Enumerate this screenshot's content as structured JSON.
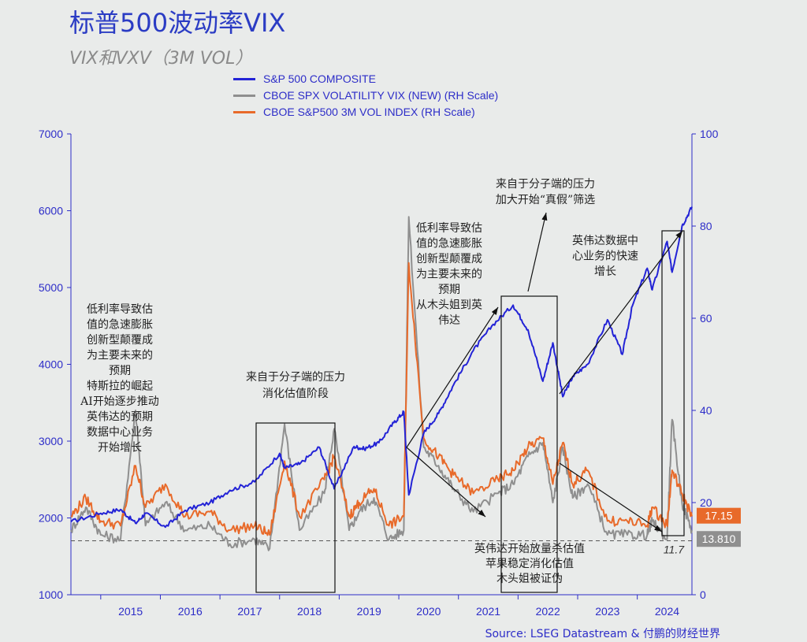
{
  "title": "标普500波动率VIX",
  "subtitle": "VIX和VXV（3M VOL）",
  "source": "Source: LSEG Datastream & 付鹏的财经世界",
  "chart_data": {
    "type": "line",
    "x_range": [
      "2014-07",
      "2024-12"
    ],
    "x_ticks": [
      "2015",
      "2016",
      "2017",
      "2018",
      "2019",
      "2020",
      "2021",
      "2022",
      "2023",
      "2024"
    ],
    "y_left": {
      "range": [
        1000,
        7000
      ],
      "ticks": [
        "1000",
        "2000",
        "3000",
        "4000",
        "5000",
        "6000",
        "7000"
      ]
    },
    "y_right": {
      "range": [
        0,
        100
      ],
      "ticks": [
        "0",
        "20",
        "40",
        "60",
        "80",
        "100"
      ]
    },
    "grid": false,
    "legend_position": "top",
    "series": [
      {
        "name": "S&P 500 COMPOSITE",
        "axis": "left",
        "color": "#2323d6",
        "x": [
          "2014-07",
          "2015-01",
          "2015-05",
          "2015-08",
          "2015-10",
          "2016-02",
          "2016-06",
          "2016-11",
          "2017-03",
          "2017-08",
          "2018-01",
          "2018-02",
          "2018-05",
          "2018-09",
          "2018-12",
          "2019-04",
          "2019-06",
          "2019-09",
          "2019-12",
          "2020-02",
          "2020-03",
          "2020-06",
          "2020-09",
          "2020-12",
          "2021-04",
          "2021-08",
          "2021-12",
          "2022-03",
          "2022-06",
          "2022-08",
          "2022-10",
          "2022-12",
          "2023-03",
          "2023-07",
          "2023-10",
          "2023-12",
          "2024-03",
          "2024-04",
          "2024-07",
          "2024-08",
          "2024-10",
          "2024-12"
        ],
        "values": [
          1950,
          2060,
          2110,
          1930,
          2060,
          1880,
          2100,
          2200,
          2360,
          2470,
          2840,
          2650,
          2700,
          2920,
          2380,
          2930,
          2900,
          2980,
          3240,
          3380,
          2300,
          3100,
          3360,
          3730,
          4180,
          4520,
          4770,
          4450,
          3780,
          4280,
          3580,
          3840,
          4000,
          4580,
          4130,
          4760,
          5250,
          4970,
          5600,
          5200,
          5800,
          6050
        ]
      },
      {
        "name": "CBOE SPX VOLATILITY VIX (NEW) (RH Scale)",
        "axis": "right",
        "color": "#8f8f8f",
        "x": [
          "2014-07",
          "2014-10",
          "2015-01",
          "2015-05",
          "2015-08",
          "2015-10",
          "2016-02",
          "2016-06",
          "2016-11",
          "2017-03",
          "2017-08",
          "2017-11",
          "2018-02",
          "2018-05",
          "2018-10",
          "2018-12",
          "2019-03",
          "2019-05",
          "2019-08",
          "2019-11",
          "2020-02",
          "2020-03",
          "2020-06",
          "2020-09",
          "2020-12",
          "2021-04",
          "2021-09",
          "2021-12",
          "2022-03",
          "2022-06",
          "2022-08",
          "2022-10",
          "2022-12",
          "2023-03",
          "2023-07",
          "2023-11",
          "2024-03",
          "2024-04",
          "2024-07",
          "2024-08",
          "2024-10",
          "2024-12"
        ],
        "values": [
          14,
          19,
          13,
          12,
          40,
          15,
          20,
          14,
          15,
          11,
          12,
          10,
          37,
          14,
          22,
          36,
          14,
          18,
          21,
          12,
          14,
          82,
          32,
          28,
          23,
          18,
          22,
          24,
          30,
          33,
          20,
          32,
          21,
          24,
          13,
          13,
          13,
          16,
          12,
          38,
          20,
          14
        ]
      },
      {
        "name": "CBOE S&P500 3M VOL INDEX (RH Scale)",
        "axis": "right",
        "color": "#e86a2a",
        "x": [
          "2014-07",
          "2014-10",
          "2015-01",
          "2015-05",
          "2015-08",
          "2015-10",
          "2016-02",
          "2016-06",
          "2016-11",
          "2017-03",
          "2017-08",
          "2017-11",
          "2018-02",
          "2018-05",
          "2018-10",
          "2018-12",
          "2019-03",
          "2019-05",
          "2019-08",
          "2019-11",
          "2020-02",
          "2020-03",
          "2020-06",
          "2020-09",
          "2020-12",
          "2021-04",
          "2021-09",
          "2021-12",
          "2022-03",
          "2022-06",
          "2022-08",
          "2022-10",
          "2022-12",
          "2023-03",
          "2023-07",
          "2023-11",
          "2024-03",
          "2024-04",
          "2024-07",
          "2024-08",
          "2024-10",
          "2024-12"
        ],
        "values": [
          17,
          21,
          16,
          15,
          28,
          19,
          24,
          17,
          18,
          14,
          15,
          13,
          29,
          17,
          25,
          30,
          17,
          20,
          23,
          15,
          17,
          72,
          34,
          30,
          26,
          22,
          25,
          27,
          32,
          34,
          24,
          33,
          24,
          27,
          16,
          16,
          15,
          19,
          15,
          27,
          22,
          17
        ]
      }
    ],
    "end_labels": [
      {
        "text": "17.15",
        "color": "#e86a2a",
        "value": 17.15
      },
      {
        "text": "13.810",
        "color": "#8f8f8f",
        "value": 13.81
      }
    ],
    "reference_line": {
      "axis": "right",
      "value": 11.7,
      "label": "11.7",
      "style": "dashed"
    },
    "annotations": [
      {
        "lines": [
          "低利率导致估",
          "值的急速膨胀",
          "创新型颠覆成",
          "为主要未来的",
          "预期",
          "特斯拉的崛起",
          "AI开始逐步推动",
          "英伟达的预期",
          "数据中心业务",
          "开始增长"
        ]
      },
      {
        "lines": [
          "来自于分子端的压力",
          "消化估值阶段"
        ]
      },
      {
        "lines": [
          "低利率导致估",
          "值的急速膨胀",
          "创新型颠覆成",
          "为主要未来的",
          "预期",
          "从木头姐到英",
          "伟达"
        ]
      },
      {
        "lines": [
          "来自于分子端的压力",
          "加大开始“真假”筛选"
        ]
      },
      {
        "lines": [
          "英伟达数据中",
          "心业务的快速",
          "增长"
        ]
      },
      {
        "lines": [
          "英伟达开始放量杀估值",
          "苹果稳定消化估值",
          "木头姐被证伪"
        ]
      }
    ]
  }
}
